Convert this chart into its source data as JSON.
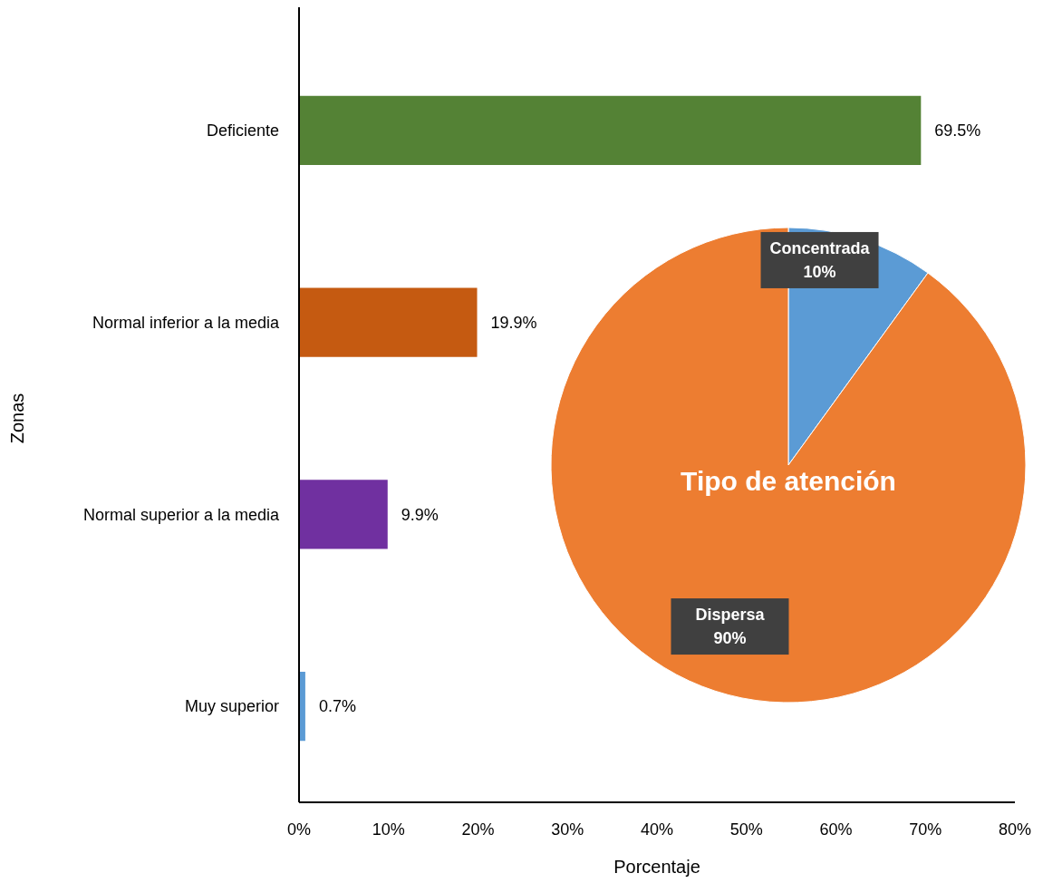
{
  "chart_data": [
    {
      "type": "bar",
      "orientation": "horizontal",
      "categories": [
        "Deficiente",
        "Normal inferior a la media",
        "Normal superior a la media",
        "Muy superior"
      ],
      "values": [
        69.5,
        19.9,
        9.9,
        0.7
      ],
      "colors": [
        "#548235",
        "#c55a11",
        "#7030a0",
        "#5b9bd5"
      ],
      "value_labels": [
        "69.5%",
        "19.9%",
        "9.9%",
        "0.7%"
      ],
      "xlim": [
        0,
        80
      ],
      "xticks": [
        {
          "value": 0,
          "label": "0%"
        },
        {
          "value": 10,
          "label": "10%"
        },
        {
          "value": 20,
          "label": "20%"
        },
        {
          "value": 30,
          "label": "30%"
        },
        {
          "value": 40,
          "label": "40%"
        },
        {
          "value": 50,
          "label": "50%"
        },
        {
          "value": 60,
          "label": "60%"
        },
        {
          "value": 70,
          "label": "70%"
        },
        {
          "value": 80,
          "label": "80%"
        }
      ],
      "xlabel": "Porcentaje",
      "ylabel": "Zonas"
    },
    {
      "type": "pie",
      "title": "Tipo de atención",
      "categories": [
        "Concentrada",
        "Dispersa"
      ],
      "values": [
        10,
        90
      ],
      "colors": [
        "#5b9bd5",
        "#ed7d31"
      ],
      "value_labels": [
        "10%",
        "90%"
      ]
    }
  ]
}
